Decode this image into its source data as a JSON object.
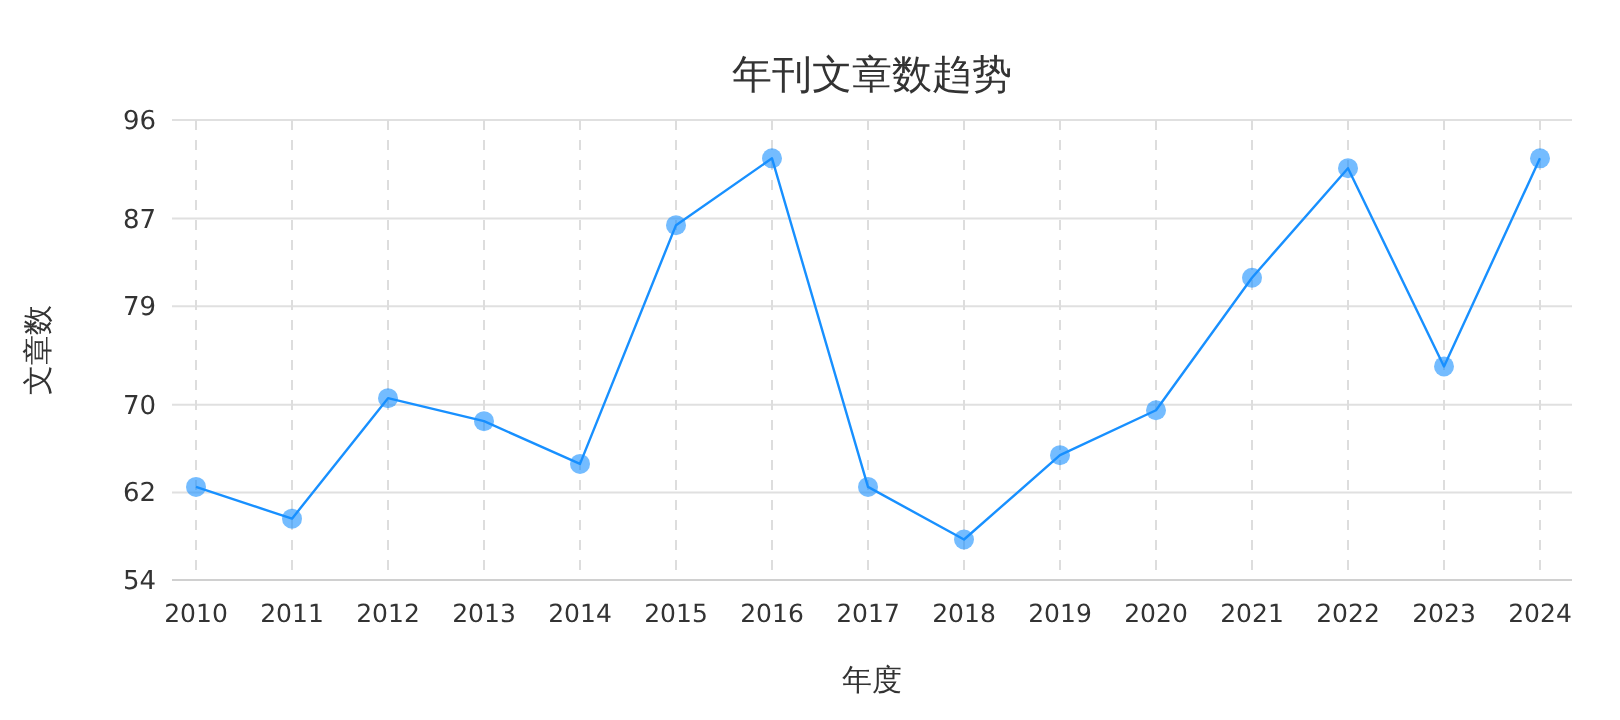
{
  "chart_data": {
    "type": "line",
    "title": "年刊文章数趋势",
    "xlabel": "年度",
    "ylabel": "文章数",
    "categories": [
      "2010",
      "2011",
      "2012",
      "2013",
      "2014",
      "2015",
      "2016",
      "2017",
      "2018",
      "2019",
      "2020",
      "2021",
      "2022",
      "2023",
      "2024"
    ],
    "values": [
      62.5,
      59.6,
      70.6,
      68.5,
      64.6,
      86.4,
      92.5,
      62.5,
      57.7,
      65.4,
      69.5,
      81.6,
      91.6,
      73.5,
      92.5
    ],
    "color": "#1890ff",
    "marker": "circle",
    "grid": true,
    "ylim": [
      54,
      96
    ],
    "yticks": [
      54,
      62,
      70,
      79,
      87,
      96
    ]
  }
}
